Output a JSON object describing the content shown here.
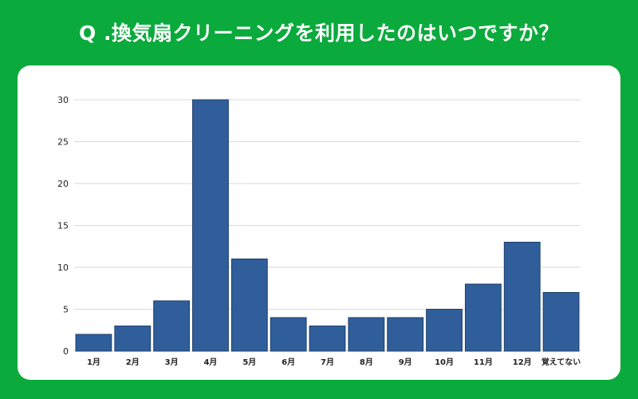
{
  "title": "Q .換気扇クリーニングを利用したのはいつですか？",
  "chart_data": {
    "type": "bar",
    "title": "",
    "xlabel": "",
    "ylabel": "",
    "categories": [
      "1月",
      "2月",
      "3月",
      "4月",
      "5月",
      "6月",
      "7月",
      "8月",
      "9月",
      "10月",
      "11月",
      "12月",
      "覚えてない"
    ],
    "values": [
      2,
      3,
      6,
      30,
      11,
      4,
      3,
      4,
      4,
      5,
      8,
      13,
      7
    ],
    "ylim": [
      0,
      30
    ],
    "yticks": [
      0,
      5,
      10,
      15,
      20,
      25,
      30
    ],
    "grid": true,
    "bar_color": "#2f5e9b"
  }
}
